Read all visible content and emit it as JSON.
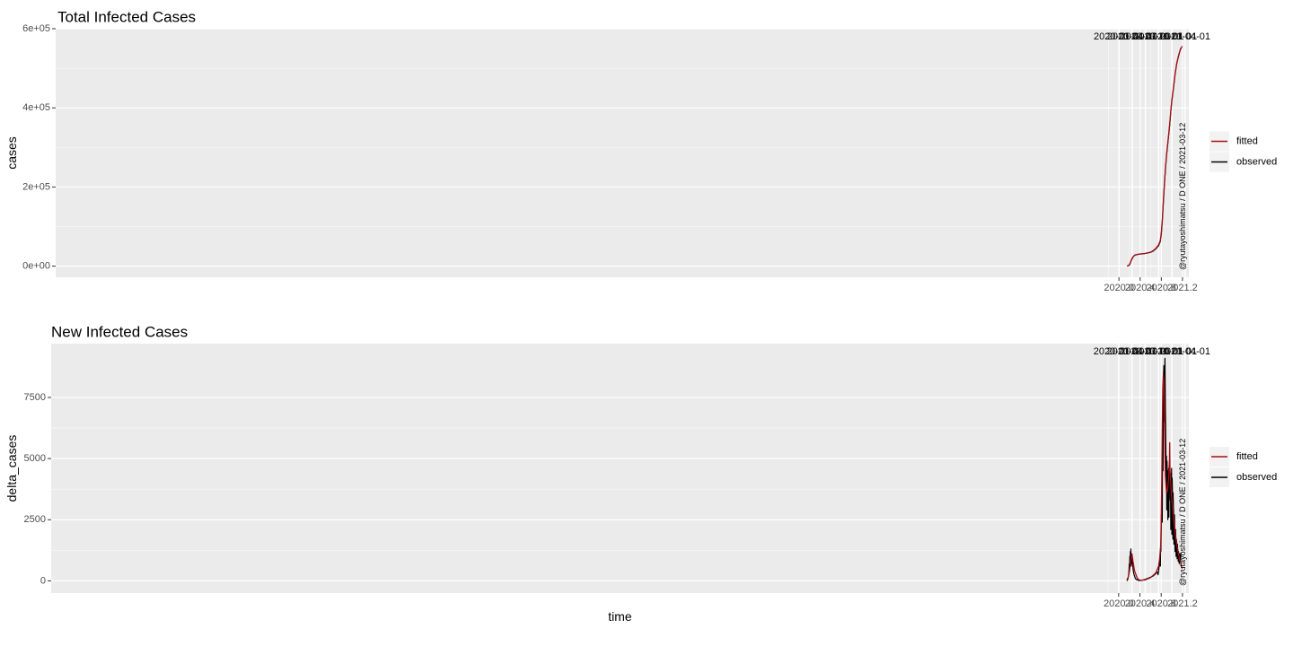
{
  "caption": "@ryutayoshimatsu / D ONE / 2021-03-12",
  "legend": {
    "position": "right",
    "entries": [
      {
        "label": "fitted",
        "color": "#a50f15"
      },
      {
        "label": "observed",
        "color": "#000000"
      }
    ]
  },
  "chart_data": [
    {
      "type": "line",
      "title": "Total Infected Cases",
      "xlabel": "",
      "ylabel": "cases",
      "xlim": [
        1999.92,
        2021.32
      ],
      "ylim": [
        -28000,
        600000
      ],
      "xticks": [
        2020.0,
        2020.4,
        2020.8,
        2021.2
      ],
      "xtick_labels": [
        "2020.0",
        "2020.4",
        "2020.8",
        "2021.2"
      ],
      "yticks": [
        0,
        200000,
        400000,
        600000
      ],
      "ytick_labels": [
        "0e+00",
        "2e+05",
        "4e+05",
        "6e+05"
      ],
      "date_lines": [
        {
          "x": 2020.0,
          "label": "2020-01-01"
        },
        {
          "x": 2020.25,
          "label": "2020-04-01"
        },
        {
          "x": 2020.5,
          "label": "2020-07-01"
        },
        {
          "x": 2020.75,
          "label": "2020-10-01"
        },
        {
          "x": 2021.0,
          "label": "2021-01-01"
        },
        {
          "x": 2021.25,
          "label": "2021-04-01"
        }
      ],
      "grid": true,
      "series": [
        {
          "name": "observed",
          "color": "#000000",
          "x": [
            2020.154,
            2020.19,
            2020.21,
            2020.23,
            2020.25,
            2020.27,
            2020.3,
            2020.35,
            2020.4,
            2020.5,
            2020.6,
            2020.65,
            2020.7,
            2020.75,
            2020.78,
            2020.8,
            2020.82,
            2020.84,
            2020.86,
            2020.88,
            2020.9,
            2020.92,
            2020.94,
            2020.96,
            2020.98,
            2021.0,
            2021.03,
            2021.06,
            2021.09,
            2021.12,
            2021.15,
            2021.17
          ],
          "y": [
            0,
            2000,
            6000,
            13000,
            19000,
            24000,
            27500,
            29500,
            30500,
            32000,
            35000,
            38500,
            44000,
            52000,
            62000,
            80000,
            115000,
            165000,
            210000,
            250000,
            280000,
            306000,
            332000,
            360000,
            390000,
            418000,
            450000,
            485000,
            510000,
            528000,
            543000,
            552000
          ]
        },
        {
          "name": "fitted",
          "color": "#a50f15",
          "x": [
            2020.154,
            2020.19,
            2020.21,
            2020.23,
            2020.25,
            2020.27,
            2020.3,
            2020.35,
            2020.4,
            2020.5,
            2020.6,
            2020.65,
            2020.7,
            2020.75,
            2020.78,
            2020.8,
            2020.82,
            2020.84,
            2020.86,
            2020.88,
            2020.9,
            2020.92,
            2020.94,
            2020.96,
            2020.98,
            2021.0,
            2021.03,
            2021.06,
            2021.09,
            2021.12,
            2021.15,
            2021.195
          ],
          "y": [
            0,
            2500,
            7000,
            14000,
            20000,
            24500,
            28000,
            29800,
            30800,
            32300,
            35500,
            39500,
            45500,
            54000,
            65000,
            83000,
            118000,
            167000,
            212000,
            252000,
            282000,
            308000,
            334000,
            362000,
            392000,
            420000,
            452000,
            486000,
            511000,
            529000,
            544000,
            556000
          ]
        }
      ]
    },
    {
      "type": "line",
      "title": "New Infected Cases",
      "xlabel": "time",
      "ylabel": "delta_cases",
      "xlim": [
        1999.92,
        2021.32
      ],
      "ylim": [
        -500,
        9700
      ],
      "xticks": [
        2020.0,
        2020.4,
        2020.8,
        2021.2
      ],
      "xtick_labels": [
        "2020.0",
        "2020.4",
        "2020.8",
        "2021.2"
      ],
      "yticks": [
        0,
        2500,
        5000,
        7500
      ],
      "ytick_labels": [
        "0",
        "2500",
        "5000",
        "7500"
      ],
      "date_lines": [
        {
          "x": 2020.0,
          "label": "2020-01-01"
        },
        {
          "x": 2020.25,
          "label": "2020-04-01"
        },
        {
          "x": 2020.5,
          "label": "2020-07-01"
        },
        {
          "x": 2020.75,
          "label": "2020-10-01"
        },
        {
          "x": 2021.0,
          "label": "2021-01-01"
        },
        {
          "x": 2021.25,
          "label": "2021-04-01"
        }
      ],
      "grid": true,
      "series": [
        {
          "name": "observed",
          "color": "#000000",
          "x": [
            2020.154,
            2020.17,
            2020.18,
            2020.19,
            2020.2,
            2020.205,
            2020.21,
            2020.215,
            2020.22,
            2020.225,
            2020.23,
            2020.235,
            2020.24,
            2020.245,
            2020.25,
            2020.255,
            2020.26,
            2020.27,
            2020.28,
            2020.29,
            2020.3,
            2020.31,
            2020.32,
            2020.33,
            2020.35,
            2020.37,
            2020.4,
            2020.45,
            2020.5,
            2020.55,
            2020.6,
            2020.65,
            2020.7,
            2020.73,
            2020.74,
            2020.75,
            2020.76,
            2020.77,
            2020.78,
            2020.785,
            2020.79,
            2020.795,
            2020.8,
            2020.805,
            2020.81,
            2020.815,
            2020.82,
            2020.825,
            2020.83,
            2020.835,
            2020.84,
            2020.845,
            2020.85,
            2020.855,
            2020.86,
            2020.865,
            2020.87,
            2020.875,
            2020.88,
            2020.885,
            2020.89,
            2020.895,
            2020.9,
            2020.905,
            2020.91,
            2020.915,
            2020.92,
            2020.925,
            2020.93,
            2020.935,
            2020.94,
            2020.945,
            2020.95,
            2020.955,
            2020.96,
            2020.965,
            2020.97,
            2020.975,
            2020.98,
            2020.985,
            2020.99,
            2020.995,
            2021.0,
            2021.005,
            2021.01,
            2021.015,
            2021.02,
            2021.025,
            2021.03,
            2021.035,
            2021.04,
            2021.045,
            2021.05,
            2021.055,
            2021.06,
            2021.065,
            2021.07,
            2021.075,
            2021.08,
            2021.085,
            2021.09,
            2021.095,
            2021.1,
            2021.105,
            2021.11,
            2021.115,
            2021.12,
            2021.125,
            2021.13,
            2021.135,
            2021.14,
            2021.145,
            2021.15,
            2021.155,
            2021.16,
            2021.165,
            2021.17
          ],
          "y": [
            0,
            50,
            150,
            300,
            700,
            500,
            1000,
            600,
            1200,
            800,
            1300,
            600,
            1100,
            700,
            1000,
            750,
            900,
            500,
            350,
            250,
            200,
            120,
            80,
            60,
            40,
            20,
            10,
            30,
            60,
            100,
            150,
            200,
            300,
            350,
            250,
            400,
            550,
            700,
            1000,
            600,
            1400,
            1200,
            2000,
            2700,
            2900,
            3500,
            2400,
            5500,
            6000,
            4500,
            7500,
            8500,
            8800,
            7000,
            6500,
            8600,
            9100,
            7800,
            7000,
            6300,
            5200,
            3900,
            5100,
            2900,
            4900,
            4300,
            3800,
            2500,
            4500,
            3700,
            4600,
            2600,
            4400,
            4200,
            5000,
            4100,
            3300,
            3900,
            2100,
            4400,
            3800,
            4600,
            1900,
            4200,
            3900,
            3400,
            1700,
            3600,
            3000,
            2800,
            1500,
            2500,
            2700,
            2200,
            1200,
            2000,
            2100,
            1800,
            1000,
            1700,
            1600,
            1400,
            900,
            1500,
            1300,
            1200,
            800,
            1200,
            1100,
            1000,
            700,
            1100,
            1000,
            1050,
            800,
            900,
            1150
          ]
        },
        {
          "name": "fitted",
          "color": "#a50f15",
          "x": [
            2020.154,
            2020.18,
            2020.2,
            2020.22,
            2020.235,
            2020.25,
            2020.27,
            2020.3,
            2020.35,
            2020.4,
            2020.5,
            2020.6,
            2020.7,
            2020.75,
            2020.77,
            2020.79,
            2020.8,
            2020.81,
            2020.82,
            2020.83,
            2020.84,
            2020.85,
            2020.86,
            2020.87,
            2020.88,
            2020.9,
            2020.92,
            2020.94,
            2020.955,
            2020.96,
            2020.965,
            2020.98,
            2021.0,
            2021.03,
            2021.06,
            2021.09,
            2021.12,
            2021.15,
            2021.195
          ],
          "y": [
            50,
            150,
            350,
            700,
            950,
            1100,
            800,
            400,
            100,
            20,
            40,
            130,
            330,
            600,
            900,
            1400,
            2300,
            4000,
            6200,
            7900,
            8400,
            8200,
            6800,
            5200,
            4300,
            3600,
            3700,
            4200,
            4900,
            5650,
            4600,
            3900,
            3300,
            2600,
            2000,
            1500,
            1150,
            850,
            500
          ]
        }
      ]
    }
  ]
}
